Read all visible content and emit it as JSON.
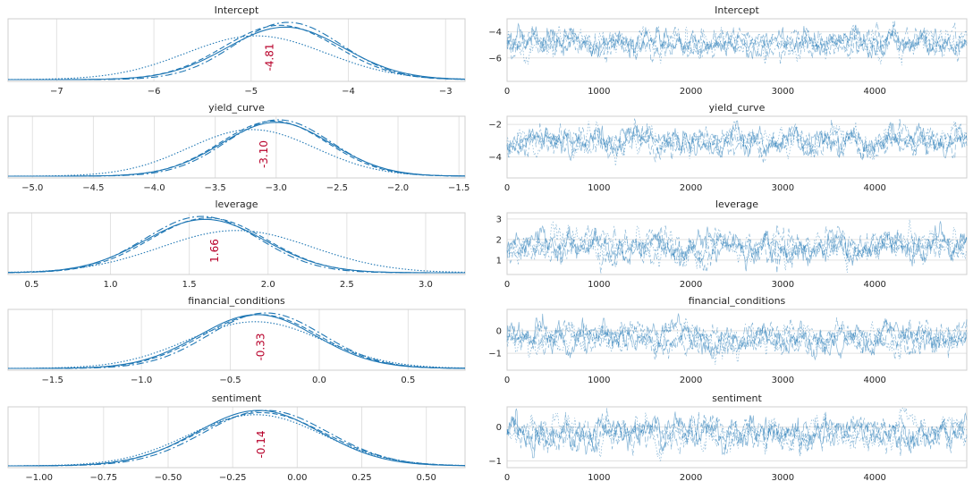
{
  "colors": {
    "line": "#1f77b4",
    "annotation": "#b8002a",
    "grid": "#e2e2e2",
    "frame": "#cfcfcf"
  },
  "chart_data": [
    {
      "type": "line",
      "title": "Intercept",
      "kind": "density",
      "xlim": [
        -7.5,
        -2.8
      ],
      "ticks": [
        -7,
        -6,
        -5,
        -4,
        -3
      ],
      "tick_labels": [
        "−7",
        "−6",
        "−5",
        "−4",
        "−3"
      ],
      "annotation": {
        "label": "-4.81",
        "x": -4.81
      },
      "series": [
        {
          "name": "chain 0",
          "mean": -4.65,
          "sd": 0.6,
          "style": "solid"
        },
        {
          "name": "chain 1",
          "mean": -4.7,
          "sd": 0.58,
          "style": "dashed"
        },
        {
          "name": "chain 2",
          "mean": -4.62,
          "sd": 0.55,
          "style": "dashdot"
        },
        {
          "name": "chain 3",
          "mean": -4.95,
          "sd": 0.72,
          "style": "dotted"
        }
      ]
    },
    {
      "type": "line",
      "title": "Intercept",
      "kind": "trace",
      "xlim": [
        0,
        5000
      ],
      "ylim": [
        -7.8,
        -3.0
      ],
      "ticks_x": [
        0,
        1000,
        2000,
        3000,
        4000
      ],
      "ticks_y": [
        -6,
        -4
      ],
      "tick_labels_y": [
        "−6",
        "−4"
      ],
      "n_draws": 5000,
      "center": -4.85,
      "spread": 0.55
    },
    {
      "type": "line",
      "title": "yield_curve",
      "kind": "density",
      "xlim": [
        -5.2,
        -1.45
      ],
      "ticks": [
        -5.0,
        -4.5,
        -4.0,
        -3.5,
        -3.0,
        -2.5,
        -2.0,
        -1.5
      ],
      "tick_labels": [
        "−5.0",
        "−4.5",
        "−4.0",
        "−3.5",
        "−3.0",
        "−2.5",
        "−2.0",
        "−1.5"
      ],
      "annotation": {
        "label": "-3.10",
        "x": -3.1
      },
      "series": [
        {
          "name": "chain 0",
          "mean": -3.0,
          "sd": 0.45,
          "style": "solid"
        },
        {
          "name": "chain 1",
          "mean": -3.02,
          "sd": 0.44,
          "style": "dashed"
        },
        {
          "name": "chain 2",
          "mean": -2.98,
          "sd": 0.43,
          "style": "dashdot"
        },
        {
          "name": "chain 3",
          "mean": -3.2,
          "sd": 0.52,
          "style": "dotted"
        }
      ]
    },
    {
      "type": "line",
      "title": "yield_curve",
      "kind": "trace",
      "xlim": [
        0,
        5000
      ],
      "ylim": [
        -5.3,
        -1.5
      ],
      "ticks_x": [
        0,
        1000,
        2000,
        3000,
        4000
      ],
      "ticks_y": [
        -4,
        -2
      ],
      "tick_labels_y": [
        "−4",
        "−2"
      ],
      "n_draws": 5000,
      "center": -3.05,
      "spread": 0.45
    },
    {
      "type": "line",
      "title": "leverage",
      "kind": "density",
      "xlim": [
        0.35,
        3.25
      ],
      "ticks": [
        0.5,
        1.0,
        1.5,
        2.0,
        2.5,
        3.0
      ],
      "tick_labels": [
        "0.5",
        "1.0",
        "1.5",
        "2.0",
        "2.5",
        "3.0"
      ],
      "annotation": {
        "label": "1.66",
        "x": 1.66
      },
      "series": [
        {
          "name": "chain 0",
          "mean": 1.6,
          "sd": 0.38,
          "style": "solid"
        },
        {
          "name": "chain 1",
          "mean": 1.62,
          "sd": 0.37,
          "style": "dashed"
        },
        {
          "name": "chain 2",
          "mean": 1.58,
          "sd": 0.36,
          "style": "dashdot"
        },
        {
          "name": "chain 3",
          "mean": 1.8,
          "sd": 0.48,
          "style": "dotted"
        }
      ]
    },
    {
      "type": "line",
      "title": "leverage",
      "kind": "trace",
      "xlim": [
        0,
        5000
      ],
      "ylim": [
        0.3,
        3.3
      ],
      "ticks_x": [
        0,
        1000,
        2000,
        3000,
        4000
      ],
      "ticks_y": [
        1,
        2,
        3
      ],
      "tick_labels_y": [
        "1",
        "2",
        "3"
      ],
      "n_draws": 5000,
      "center": 1.66,
      "spread": 0.4
    },
    {
      "type": "line",
      "title": "financial_conditions",
      "kind": "density",
      "xlim": [
        -1.75,
        0.82
      ],
      "ticks": [
        -1.5,
        -1.0,
        -0.5,
        0.0,
        0.5
      ],
      "tick_labels": [
        "−1.5",
        "−1.0",
        "−0.5",
        "0.0",
        "0.5"
      ],
      "annotation": {
        "label": "-0.33",
        "x": -0.33
      },
      "series": [
        {
          "name": "chain 0",
          "mean": -0.35,
          "sd": 0.33,
          "style": "solid"
        },
        {
          "name": "chain 1",
          "mean": -0.33,
          "sd": 0.33,
          "style": "dashed"
        },
        {
          "name": "chain 2",
          "mean": -0.3,
          "sd": 0.32,
          "style": "dashdot"
        },
        {
          "name": "chain 3",
          "mean": -0.36,
          "sd": 0.38,
          "style": "dotted"
        }
      ]
    },
    {
      "type": "line",
      "title": "financial_conditions",
      "kind": "trace",
      "xlim": [
        0,
        5000
      ],
      "ylim": [
        -1.75,
        0.95
      ],
      "ticks_x": [
        0,
        1000,
        2000,
        3000,
        4000
      ],
      "ticks_y": [
        -1,
        0
      ],
      "tick_labels_y": [
        "−1",
        "0"
      ],
      "n_draws": 5000,
      "center": -0.33,
      "spread": 0.35
    },
    {
      "type": "line",
      "title": "sentiment",
      "kind": "density",
      "xlim": [
        -1.12,
        0.65
      ],
      "ticks": [
        -1.0,
        -0.75,
        -0.5,
        -0.25,
        0.0,
        0.25,
        0.5
      ],
      "tick_labels": [
        "−1.00",
        "−0.75",
        "−0.50",
        "−0.25",
        "0.00",
        "0.25",
        "0.50"
      ],
      "annotation": {
        "label": "-0.14",
        "x": -0.14
      },
      "series": [
        {
          "name": "chain 0",
          "mean": -0.15,
          "sd": 0.24,
          "style": "solid"
        },
        {
          "name": "chain 1",
          "mean": -0.14,
          "sd": 0.25,
          "style": "dashed"
        },
        {
          "name": "chain 2",
          "mean": -0.12,
          "sd": 0.24,
          "style": "dashdot"
        },
        {
          "name": "chain 3",
          "mean": -0.16,
          "sd": 0.26,
          "style": "dotted"
        }
      ]
    },
    {
      "type": "line",
      "title": "sentiment",
      "kind": "trace",
      "xlim": [
        0,
        5000
      ],
      "ylim": [
        -1.2,
        0.6
      ],
      "ticks_x": [
        0,
        1000,
        2000,
        3000,
        4000
      ],
      "ticks_y": [
        -1,
        0
      ],
      "tick_labels_y": [
        "−1",
        "0"
      ],
      "n_draws": 5000,
      "center": -0.14,
      "spread": 0.25
    }
  ]
}
